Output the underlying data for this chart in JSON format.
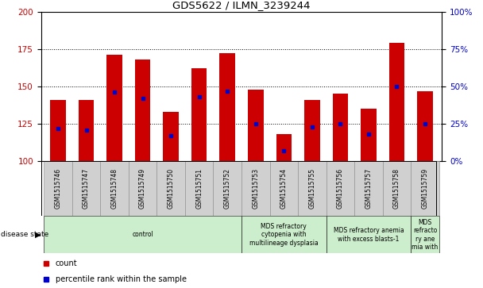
{
  "title": "GDS5622 / ILMN_3239244",
  "samples": [
    "GSM1515746",
    "GSM1515747",
    "GSM1515748",
    "GSM1515749",
    "GSM1515750",
    "GSM1515751",
    "GSM1515752",
    "GSM1515753",
    "GSM1515754",
    "GSM1515755",
    "GSM1515756",
    "GSM1515757",
    "GSM1515758",
    "GSM1515759"
  ],
  "counts": [
    141,
    141,
    171,
    168,
    133,
    162,
    172,
    148,
    118,
    141,
    145,
    135,
    179,
    147
  ],
  "percentile_ranks": [
    22,
    21,
    46,
    42,
    17,
    43,
    47,
    25,
    7,
    23,
    25,
    18,
    50,
    25
  ],
  "ylim_left": [
    100,
    200
  ],
  "ylim_right": [
    0,
    100
  ],
  "yticks_left": [
    100,
    125,
    150,
    175,
    200
  ],
  "yticks_right": [
    0,
    25,
    50,
    75,
    100
  ],
  "bar_color": "#cc0000",
  "marker_color": "#0000cc",
  "bg_color": "#ffffff",
  "disease_groups": [
    {
      "label": "control",
      "start": 0,
      "end": 6,
      "color": "#cceecc"
    },
    {
      "label": "MDS refractory\ncytopenia with\nmultilineage dysplasia",
      "start": 7,
      "end": 9,
      "color": "#cceecc"
    },
    {
      "label": "MDS refractory anemia\nwith excess blasts-1",
      "start": 10,
      "end": 12,
      "color": "#cceecc"
    },
    {
      "label": "MDS\nrefracto\nry ane\nmia with",
      "start": 13,
      "end": 13,
      "color": "#cceecc"
    }
  ],
  "legend_count_label": "count",
  "legend_percentile_label": "percentile rank within the sample",
  "disease_state_label": "disease state"
}
